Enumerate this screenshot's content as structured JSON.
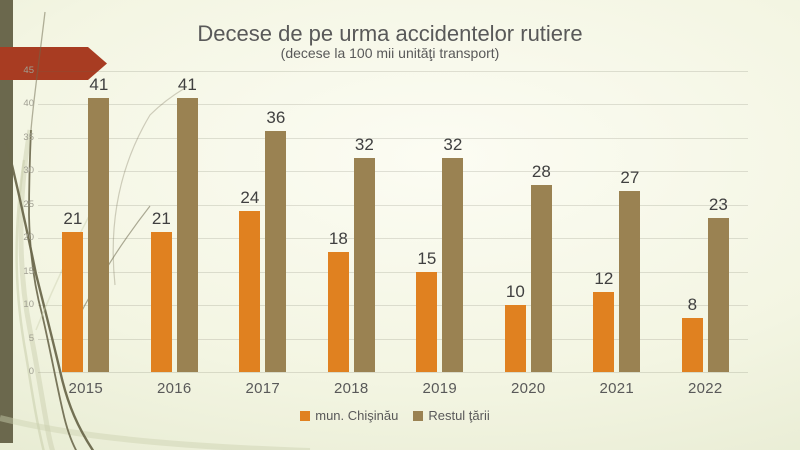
{
  "chart_data": {
    "type": "bar",
    "title": "Decese de pe urma accidentelor rutiere",
    "subtitle": "(decese la 100 mii unităţi transport)",
    "categories": [
      "2015",
      "2016",
      "2017",
      "2018",
      "2019",
      "2020",
      "2021",
      "2022"
    ],
    "series": [
      {
        "name": "mun. Chişinău",
        "color": "#E08120",
        "values": [
          21,
          21,
          24,
          18,
          15,
          10,
          12,
          8
        ]
      },
      {
        "name": "Restul ţării",
        "color": "#9A8252",
        "values": [
          41,
          41,
          36,
          32,
          32,
          28,
          27,
          23
        ]
      }
    ],
    "ylim": [
      0,
      45
    ],
    "ytick_step": 5,
    "grid": true,
    "legend_position": "bottom"
  },
  "theme": {
    "arrow_color": "#A83C22",
    "strip_color": "#6B684D",
    "curve_color": "#6C684C",
    "light_curve_color": "#CBD0AF",
    "label_color": "#404040",
    "axis_text_color": "#A09F92",
    "text_color": "#595959"
  }
}
